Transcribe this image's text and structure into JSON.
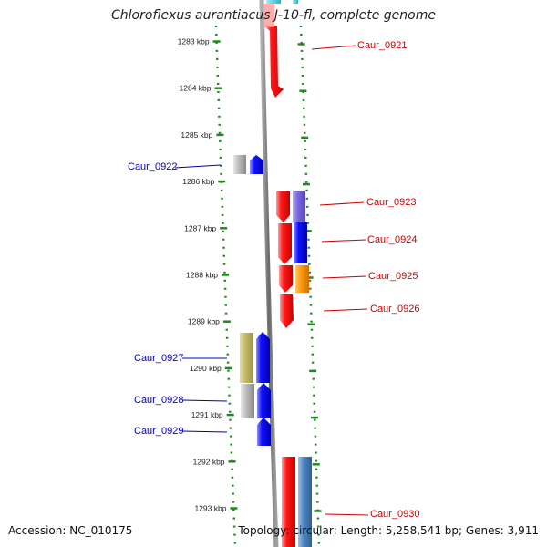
{
  "title": "Chloroflexus aurantiacus J-10-fl, complete genome",
  "accession": "Accession: NC_010175",
  "topology": "Topology: circular; Length: 5,258,541 bp; Genes: 3,911",
  "ruler": [
    {
      "kbp": 1283,
      "label": "1283 kbp"
    },
    {
      "kbp": 1284,
      "label": "1284 kbp"
    },
    {
      "kbp": 1285,
      "label": "1285 kbp"
    },
    {
      "kbp": 1286,
      "label": "1286 kbp"
    },
    {
      "kbp": 1287,
      "label": "1287 kbp"
    },
    {
      "kbp": 1288,
      "label": "1288 kbp"
    },
    {
      "kbp": 1289,
      "label": "1289 kbp"
    },
    {
      "kbp": 1290,
      "label": "1290 kbp"
    },
    {
      "kbp": 1291,
      "label": "1291 kbp"
    },
    {
      "kbp": 1292,
      "label": "1292 kbp"
    },
    {
      "kbp": 1293,
      "label": "1293 kbp"
    }
  ],
  "colors": {
    "forward_label": "#cc0000",
    "reverse_label": "#0000bb",
    "strand_forward": "#ff0000",
    "strand_reverse": "#0000ff",
    "ruler": "#228822"
  },
  "labels": [
    {
      "text": "Caur_0921",
      "strand": "forward"
    },
    {
      "text": "Caur_0922",
      "strand": "reverse"
    },
    {
      "text": "Caur_0923",
      "strand": "forward"
    },
    {
      "text": "Caur_0924",
      "strand": "forward"
    },
    {
      "text": "Caur_0925",
      "strand": "forward"
    },
    {
      "text": "Caur_0926",
      "strand": "forward"
    },
    {
      "text": "Caur_0927",
      "strand": "reverse"
    },
    {
      "text": "Caur_0928",
      "strand": "reverse"
    },
    {
      "text": "Caur_0929",
      "strand": "reverse"
    },
    {
      "text": "Caur_0930",
      "strand": "forward"
    }
  ]
}
